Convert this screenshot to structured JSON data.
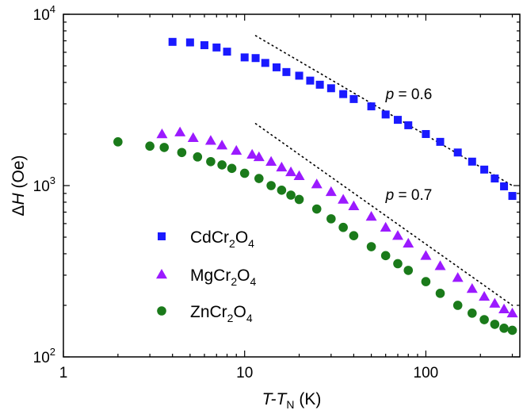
{
  "chart_data": {
    "type": "scatter",
    "xscale": "log",
    "yscale": "log",
    "xlim": [
      1,
      330
    ],
    "ylim": [
      100,
      10000
    ],
    "grid": false,
    "legend_position": "lower-left",
    "xlabel": {
      "main": "T-T",
      "sub": "N",
      "unit": " (K)"
    },
    "ylabel": {
      "prefix": "Δ",
      "main": "H",
      "unit": " (Oe)"
    },
    "x_ticks": [
      {
        "value": 1,
        "label": "1"
      },
      {
        "value": 10,
        "label": "10"
      },
      {
        "value": 100,
        "label": "100"
      }
    ],
    "y_ticks": [
      {
        "value": 100,
        "base": "10",
        "exp": "2"
      },
      {
        "value": 1000,
        "base": "10",
        "exp": "3"
      },
      {
        "value": 10000,
        "base": "10",
        "exp": "4"
      }
    ],
    "annotations": [
      {
        "symbol": "p",
        "text": " = 0.6",
        "x": 60,
        "y": 3400
      },
      {
        "symbol": "p",
        "text": " = 0.7",
        "x": 60,
        "y": 880
      }
    ],
    "guide_lines": [
      {
        "x": [
          11.5,
          300
        ],
        "y": [
          7500,
          1000
        ],
        "style": "dotted"
      },
      {
        "x": [
          11.5,
          300
        ],
        "y": [
          2300,
          200
        ],
        "style": "dotted"
      }
    ],
    "series": [
      {
        "name_parts": [
          "CdCr",
          "2",
          "O",
          "4"
        ],
        "marker": "square",
        "color": "#1a1aff",
        "points": [
          [
            4.0,
            6900
          ],
          [
            5.0,
            6850
          ],
          [
            6.0,
            6600
          ],
          [
            7.0,
            6400
          ],
          [
            8.0,
            6050
          ],
          [
            10.0,
            5600
          ],
          [
            11.5,
            5550
          ],
          [
            13,
            5200
          ],
          [
            15,
            4900
          ],
          [
            17,
            4600
          ],
          [
            20,
            4380
          ],
          [
            23,
            4100
          ],
          [
            26,
            3880
          ],
          [
            30,
            3700
          ],
          [
            35,
            3420
          ],
          [
            40,
            3200
          ],
          [
            50,
            2900
          ],
          [
            60,
            2600
          ],
          [
            70,
            2420
          ],
          [
            80,
            2250
          ],
          [
            100,
            2000
          ],
          [
            120,
            1800
          ],
          [
            150,
            1560
          ],
          [
            180,
            1380
          ],
          [
            210,
            1240
          ],
          [
            240,
            1100
          ],
          [
            270,
            990
          ],
          [
            300,
            870
          ]
        ]
      },
      {
        "name_parts": [
          "MgCr",
          "2",
          "O",
          "4"
        ],
        "marker": "triangle",
        "color": "#9b1aff",
        "points": [
          [
            3.5,
            2000
          ],
          [
            4.4,
            2050
          ],
          [
            5.2,
            1900
          ],
          [
            6.5,
            1830
          ],
          [
            7.5,
            1720
          ],
          [
            9.0,
            1600
          ],
          [
            11,
            1520
          ],
          [
            12,
            1470
          ],
          [
            14,
            1380
          ],
          [
            16,
            1280
          ],
          [
            18,
            1200
          ],
          [
            20,
            1140
          ],
          [
            25,
            1020
          ],
          [
            30,
            920
          ],
          [
            35,
            830
          ],
          [
            40,
            760
          ],
          [
            50,
            660
          ],
          [
            60,
            570
          ],
          [
            70,
            510
          ],
          [
            80,
            460
          ],
          [
            100,
            390
          ],
          [
            120,
            340
          ],
          [
            150,
            290
          ],
          [
            180,
            250
          ],
          [
            210,
            225
          ],
          [
            240,
            205
          ],
          [
            270,
            190
          ],
          [
            300,
            180
          ]
        ]
      },
      {
        "name_parts": [
          "ZnCr",
          "2",
          "O",
          "4"
        ],
        "marker": "circle",
        "color": "#1a7a1a",
        "points": [
          [
            2.0,
            1800
          ],
          [
            3.0,
            1700
          ],
          [
            3.6,
            1670
          ],
          [
            4.5,
            1560
          ],
          [
            5.5,
            1470
          ],
          [
            6.5,
            1380
          ],
          [
            7.5,
            1320
          ],
          [
            8.5,
            1260
          ],
          [
            10,
            1180
          ],
          [
            12,
            1100
          ],
          [
            14,
            1000
          ],
          [
            16,
            940
          ],
          [
            18,
            880
          ],
          [
            20,
            830
          ],
          [
            25,
            730
          ],
          [
            30,
            640
          ],
          [
            35,
            570
          ],
          [
            40,
            510
          ],
          [
            50,
            440
          ],
          [
            60,
            390
          ],
          [
            70,
            350
          ],
          [
            80,
            320
          ],
          [
            100,
            275
          ],
          [
            120,
            235
          ],
          [
            150,
            200
          ],
          [
            180,
            180
          ],
          [
            210,
            165
          ],
          [
            240,
            155
          ],
          [
            270,
            147
          ],
          [
            300,
            143
          ]
        ]
      }
    ]
  }
}
